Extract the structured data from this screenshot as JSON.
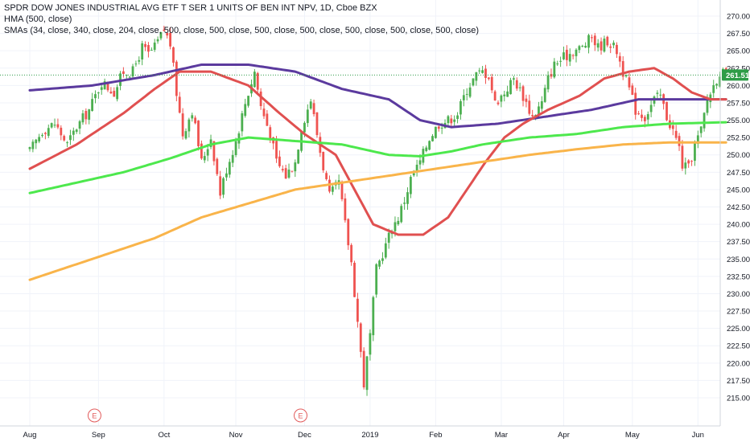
{
  "legend": {
    "title": "SPDR DOW JONES INDUSTRIAL AVG ETF T SER 1 UNITS OF BEN INT NPV, 1D, Cboe BZX",
    "hma": "HMA (500, close)",
    "smas": "SMAs (34, close, 340, close, 204, close, 500, close, 500, close, 500, close, 500, close, 500, close, 500, close, 500, close)"
  },
  "chart_data": {
    "type": "candlestick",
    "title": "SPDR DOW JONES INDUSTRIAL AVG ETF T SER 1 UNITS OF BEN INT NPV, 1D, Cboe BZX",
    "x_labels": [
      "Aug",
      "Sep",
      "Oct",
      "Nov",
      "Dec",
      "2019",
      "Feb",
      "Mar",
      "Apr",
      "May",
      "Jun"
    ],
    "x_label_day_index": [
      0,
      22,
      43,
      66,
      88,
      109,
      130,
      151,
      171,
      193,
      214
    ],
    "y_ticks": [
      "270.00",
      "267.50",
      "265.00",
      "262.50",
      "260.00",
      "257.50",
      "255.00",
      "252.50",
      "250.00",
      "247.50",
      "245.00",
      "242.50",
      "240.00",
      "237.50",
      "235.00",
      "232.50",
      "230.00",
      "227.50",
      "225.00",
      "222.50",
      "220.00",
      "217.50",
      "215.00"
    ],
    "ylim": [
      214.0,
      271.0
    ],
    "last_price": "261.51",
    "event_markers": [
      {
        "label": "E",
        "day_index": 13
      },
      {
        "label": "E",
        "day_index": 79
      }
    ],
    "price_path_key_points": [
      [
        0,
        250.5
      ],
      [
        4,
        253.5
      ],
      [
        8,
        254.5
      ],
      [
        12,
        251.5
      ],
      [
        15,
        254.0
      ],
      [
        19,
        256.5
      ],
      [
        23,
        260.5
      ],
      [
        27,
        259.0
      ],
      [
        30,
        262.0
      ],
      [
        33,
        262.0
      ],
      [
        36,
        265.5
      ],
      [
        38,
        264.5
      ],
      [
        40,
        265.5
      ],
      [
        43,
        268.0
      ],
      [
        45,
        266.0
      ],
      [
        47,
        259.0
      ],
      [
        49,
        253.0
      ],
      [
        52,
        256.5
      ],
      [
        55,
        249.0
      ],
      [
        58,
        252.5
      ],
      [
        61,
        244.5
      ],
      [
        63,
        248.0
      ],
      [
        66,
        252.0
      ],
      [
        69,
        257.5
      ],
      [
        72,
        262.0
      ],
      [
        74,
        257.0
      ],
      [
        77,
        253.0
      ],
      [
        79,
        249.0
      ],
      [
        82,
        247.0
      ],
      [
        85,
        249.0
      ],
      [
        87,
        254.0
      ],
      [
        90,
        258.0
      ],
      [
        93,
        250.5
      ],
      [
        96,
        244.0
      ],
      [
        99,
        246.0
      ],
      [
        101,
        240.0
      ],
      [
        103,
        234.5
      ],
      [
        105,
        226.0
      ],
      [
        107,
        217.0
      ],
      [
        109,
        224.0
      ],
      [
        111,
        233.5
      ],
      [
        114,
        237.0
      ],
      [
        116,
        239.5
      ],
      [
        118,
        241.0
      ],
      [
        120,
        243.5
      ],
      [
        122,
        246.5
      ],
      [
        125,
        249.0
      ],
      [
        128,
        252.5
      ],
      [
        131,
        254.5
      ],
      [
        134,
        255.0
      ],
      [
        137,
        256.0
      ],
      [
        140,
        259.5
      ],
      [
        143,
        261.5
      ],
      [
        145,
        262.0
      ],
      [
        147,
        261.5
      ],
      [
        149,
        257.5
      ],
      [
        152,
        259.0
      ],
      [
        155,
        261.0
      ],
      [
        158,
        258.5
      ],
      [
        161,
        255.5
      ],
      [
        164,
        257.5
      ],
      [
        166,
        261.0
      ],
      [
        168,
        263.0
      ],
      [
        171,
        264.0
      ],
      [
        174,
        265.0
      ],
      [
        177,
        265.5
      ],
      [
        180,
        267.0
      ],
      [
        182,
        265.5
      ],
      [
        185,
        266.5
      ],
      [
        188,
        265.0
      ],
      [
        190,
        262.0
      ],
      [
        192,
        259.5
      ],
      [
        194,
        256.5
      ],
      [
        197,
        255.5
      ],
      [
        200,
        258.0
      ],
      [
        202,
        258.5
      ],
      [
        204,
        255.5
      ],
      [
        206,
        253.5
      ],
      [
        208,
        251.0
      ],
      [
        209,
        248.5
      ],
      [
        211,
        248.0
      ],
      [
        213,
        251.5
      ],
      [
        215,
        253.5
      ],
      [
        217,
        258.0
      ],
      [
        219,
        260.0
      ],
      [
        221,
        262.0
      ],
      [
        223,
        261.5
      ]
    ],
    "series": [
      {
        "name": "HMA (500, close)",
        "color": "#5b3a9e",
        "points": [
          [
            0,
            259.3
          ],
          [
            20,
            260.0
          ],
          [
            40,
            261.5
          ],
          [
            55,
            263.0
          ],
          [
            70,
            263.0
          ],
          [
            85,
            262.0
          ],
          [
            100,
            259.5
          ],
          [
            115,
            258.0
          ],
          [
            125,
            255.0
          ],
          [
            135,
            254.0
          ],
          [
            150,
            254.5
          ],
          [
            165,
            255.5
          ],
          [
            180,
            256.5
          ],
          [
            195,
            258.0
          ],
          [
            210,
            258.0
          ],
          [
            223,
            258.0
          ]
        ]
      },
      {
        "name": "SMA 34",
        "color": "#e05050",
        "points": [
          [
            0,
            248.0
          ],
          [
            15,
            251.5
          ],
          [
            30,
            256.0
          ],
          [
            40,
            259.5
          ],
          [
            48,
            262.0
          ],
          [
            58,
            262.0
          ],
          [
            70,
            260.0
          ],
          [
            80,
            256.0
          ],
          [
            88,
            253.0
          ],
          [
            98,
            250.0
          ],
          [
            104,
            245.0
          ],
          [
            110,
            240.0
          ],
          [
            118,
            238.5
          ],
          [
            126,
            238.5
          ],
          [
            134,
            241.0
          ],
          [
            140,
            245.0
          ],
          [
            146,
            249.0
          ],
          [
            152,
            252.5
          ],
          [
            158,
            254.5
          ],
          [
            166,
            256.5
          ],
          [
            176,
            258.5
          ],
          [
            184,
            261.0
          ],
          [
            192,
            262.0
          ],
          [
            200,
            262.5
          ],
          [
            206,
            261.0
          ],
          [
            212,
            259.0
          ],
          [
            218,
            258.0
          ],
          [
            223,
            258.0
          ]
        ]
      },
      {
        "name": "SMA 204",
        "color": "#4de84d",
        "points": [
          [
            0,
            244.5
          ],
          [
            15,
            246.0
          ],
          [
            30,
            247.5
          ],
          [
            45,
            249.5
          ],
          [
            58,
            251.5
          ],
          [
            70,
            252.5
          ],
          [
            85,
            252.0
          ],
          [
            100,
            251.5
          ],
          [
            115,
            250.0
          ],
          [
            125,
            249.8
          ],
          [
            135,
            250.5
          ],
          [
            145,
            251.5
          ],
          [
            160,
            252.5
          ],
          [
            175,
            253.0
          ],
          [
            190,
            254.0
          ],
          [
            205,
            254.5
          ],
          [
            223,
            254.7
          ]
        ]
      },
      {
        "name": "SMA 340",
        "color": "#f9b44a",
        "points": [
          [
            0,
            232.0
          ],
          [
            20,
            235.0
          ],
          [
            40,
            238.0
          ],
          [
            55,
            241.0
          ],
          [
            70,
            243.0
          ],
          [
            85,
            245.0
          ],
          [
            100,
            246.0
          ],
          [
            115,
            247.0
          ],
          [
            130,
            248.0
          ],
          [
            145,
            249.0
          ],
          [
            160,
            250.0
          ],
          [
            175,
            250.8
          ],
          [
            190,
            251.5
          ],
          [
            205,
            251.8
          ],
          [
            223,
            251.8
          ]
        ]
      }
    ]
  },
  "colors": {
    "up": "#4caf50",
    "down": "#ef5350",
    "last_price_bg": "#2e9c47",
    "grid": "#f0f3fa",
    "event": "#e25c5c"
  }
}
